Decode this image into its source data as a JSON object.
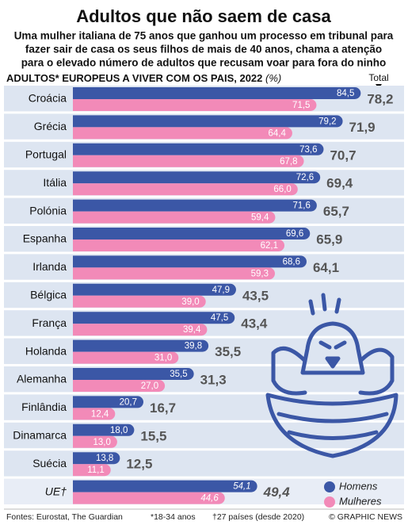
{
  "chart_data": {
    "type": "bar",
    "title": "Adultos que não saem de casa",
    "subtitle": [
      "Uma mulher italiana de 75 anos que ganhou um processo em tribunal para",
      "fazer sair de casa os seus filhos de mais de 40 anos, chama a atenção",
      "para o elevado número de adultos que recusam voar para fora do ninho"
    ],
    "heading": "ADULTOS* EUROPEUS A VIVER COM OS PAIS, 2022",
    "unit": "(%)",
    "categories": [
      "Croácia",
      "Grécia",
      "Portugal",
      "Itália",
      "Polónia",
      "Espanha",
      "Irlanda",
      "Bélgica",
      "França",
      "Holanda",
      "Alemanha",
      "Finlândia",
      "Dinamarca",
      "Suécia",
      "UE†"
    ],
    "series": [
      {
        "name": "Homens",
        "color": "#3b57a6",
        "values": [
          84.5,
          79.2,
          73.6,
          72.6,
          71.6,
          69.6,
          68.6,
          47.9,
          47.5,
          39.8,
          35.5,
          20.7,
          18.0,
          13.8,
          54.1
        ],
        "value_labels": [
          "84,5",
          "79,2",
          "73,6",
          "72,6",
          "71,6",
          "69,6",
          "68,6",
          "47,9",
          "47,5",
          "39,8",
          "35,5",
          "20,7",
          "18,0",
          "13,8",
          "54,1"
        ]
      },
      {
        "name": "Mulheres",
        "color": "#f28ab8",
        "values": [
          71.5,
          64.4,
          67.8,
          66.0,
          59.4,
          62.1,
          59.3,
          39.0,
          39.4,
          31.0,
          27.0,
          12.4,
          13.0,
          11.1,
          44.6
        ],
        "value_labels": [
          "71,5",
          "64,4",
          "67,8",
          "66,0",
          "59,4",
          "62,1",
          "59,3",
          "39,0",
          "39,4",
          "31,0",
          "27,0",
          "12,4",
          "13,0",
          "11,1",
          "44,6"
        ]
      },
      {
        "name": "Total",
        "color": "#555555",
        "values": [
          78.2,
          71.9,
          70.7,
          69.4,
          65.7,
          65.9,
          64.1,
          43.5,
          43.4,
          35.5,
          31.3,
          16.7,
          15.5,
          12.5,
          49.4
        ],
        "value_labels": [
          "78,2",
          "71,9",
          "70,7",
          "69,4",
          "65,7",
          "65,9",
          "64,1",
          "43,5",
          "43,4",
          "35,5",
          "31,3",
          "16,7",
          "15,5",
          "12,5",
          "49,4"
        ]
      }
    ],
    "xlim": [
      0,
      100
    ],
    "notes": [
      "Fontes: Eurostat, The Guardian",
      "*18-34 anos",
      "†27 países (desde 2020)",
      "© GRAPHIC NEWS"
    ]
  }
}
